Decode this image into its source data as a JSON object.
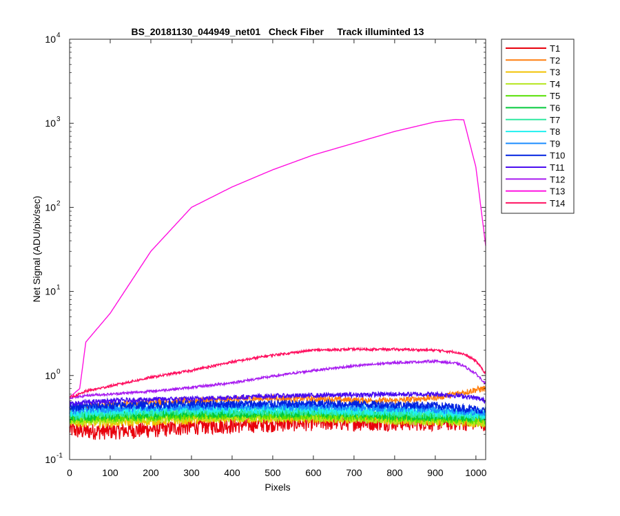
{
  "chart_data": {
    "type": "line",
    "title": "BS_20181130_044949_net01   Check Fiber     Track illuminted 13",
    "xlabel": "Pixels",
    "ylabel": "Net Signal (ADU/pix/sec)",
    "xlim": [
      0,
      1024
    ],
    "ylim": [
      0.1,
      10000
    ],
    "yscale": "log",
    "grid": false,
    "legend_position": "outside-top-right",
    "x_ticks": [
      0,
      100,
      200,
      300,
      400,
      500,
      600,
      700,
      800,
      900,
      1000
    ],
    "x_tick_labels": [
      "0",
      "100",
      "200",
      "300",
      "400",
      "500",
      "600",
      "700",
      "800",
      "900",
      "1000"
    ],
    "y_ticks": [
      0.1,
      1,
      10,
      100,
      1000,
      10000
    ],
    "y_tick_labels": [
      {
        "base": "10",
        "exp": "-1"
      },
      {
        "base": "10",
        "exp": "0"
      },
      {
        "base": "10",
        "exp": "1"
      },
      {
        "base": "10",
        "exp": "2"
      },
      {
        "base": "10",
        "exp": "3"
      },
      {
        "base": "10",
        "exp": "4"
      }
    ],
    "x": [
      0,
      25,
      40,
      100,
      200,
      300,
      400,
      500,
      600,
      700,
      800,
      900,
      950,
      970,
      1000,
      1024
    ],
    "series": [
      {
        "name": "T1",
        "color": "#e8000b",
        "values": [
          0.23,
          0.22,
          0.22,
          0.22,
          0.23,
          0.25,
          0.26,
          0.27,
          0.28,
          0.28,
          0.28,
          0.28,
          0.28,
          0.28,
          0.28,
          0.28
        ],
        "noise": 0.1
      },
      {
        "name": "T2",
        "color": "#ff7f0e",
        "values": [
          0.4,
          0.42,
          0.43,
          0.45,
          0.48,
          0.5,
          0.52,
          0.54,
          0.53,
          0.51,
          0.5,
          0.55,
          0.6,
          0.63,
          0.68,
          0.7
        ],
        "noise": 0.04
      },
      {
        "name": "T3",
        "color": "#f2c200",
        "values": [
          0.28,
          0.28,
          0.28,
          0.28,
          0.29,
          0.3,
          0.31,
          0.31,
          0.31,
          0.31,
          0.3,
          0.29,
          0.29,
          0.28,
          0.28,
          0.28
        ],
        "noise": 0.06
      },
      {
        "name": "T4",
        "color": "#b5e61d",
        "values": [
          0.29,
          0.29,
          0.29,
          0.3,
          0.31,
          0.32,
          0.32,
          0.32,
          0.32,
          0.31,
          0.3,
          0.29,
          0.29,
          0.29,
          0.28,
          0.28
        ],
        "noise": 0.06
      },
      {
        "name": "T5",
        "color": "#55e000",
        "values": [
          0.31,
          0.31,
          0.31,
          0.32,
          0.33,
          0.34,
          0.34,
          0.34,
          0.34,
          0.33,
          0.32,
          0.31,
          0.31,
          0.31,
          0.3,
          0.3
        ],
        "noise": 0.06
      },
      {
        "name": "T6",
        "color": "#00c83a",
        "values": [
          0.33,
          0.33,
          0.33,
          0.34,
          0.35,
          0.36,
          0.36,
          0.36,
          0.36,
          0.35,
          0.34,
          0.33,
          0.33,
          0.32,
          0.32,
          0.32
        ],
        "noise": 0.06
      },
      {
        "name": "T7",
        "color": "#2ee8a0",
        "values": [
          0.34,
          0.34,
          0.35,
          0.36,
          0.37,
          0.38,
          0.38,
          0.38,
          0.38,
          0.37,
          0.36,
          0.35,
          0.34,
          0.34,
          0.33,
          0.33
        ],
        "noise": 0.06
      },
      {
        "name": "T8",
        "color": "#20f0f0",
        "values": [
          0.36,
          0.36,
          0.37,
          0.38,
          0.39,
          0.4,
          0.4,
          0.4,
          0.4,
          0.39,
          0.38,
          0.37,
          0.36,
          0.35,
          0.35,
          0.35
        ],
        "noise": 0.06
      },
      {
        "name": "T9",
        "color": "#1a8cff",
        "values": [
          0.39,
          0.39,
          0.4,
          0.41,
          0.42,
          0.43,
          0.43,
          0.43,
          0.43,
          0.42,
          0.41,
          0.4,
          0.39,
          0.38,
          0.37,
          0.37
        ],
        "noise": 0.05
      },
      {
        "name": "T10",
        "color": "#0022e0",
        "values": [
          0.42,
          0.42,
          0.43,
          0.44,
          0.45,
          0.46,
          0.46,
          0.46,
          0.46,
          0.46,
          0.45,
          0.44,
          0.42,
          0.41,
          0.4,
          0.38
        ],
        "noise": 0.05
      },
      {
        "name": "T11",
        "color": "#4a0cf0",
        "values": [
          0.46,
          0.47,
          0.48,
          0.5,
          0.52,
          0.53,
          0.55,
          0.57,
          0.58,
          0.59,
          0.6,
          0.6,
          0.58,
          0.57,
          0.54,
          0.5
        ],
        "noise": 0.03
      },
      {
        "name": "T12",
        "color": "#a81cf0",
        "values": [
          0.55,
          0.56,
          0.58,
          0.6,
          0.65,
          0.72,
          0.82,
          0.98,
          1.15,
          1.3,
          1.42,
          1.48,
          1.4,
          1.3,
          1.05,
          0.8
        ],
        "noise": 0.015
      },
      {
        "name": "T13",
        "color": "#ff10e0",
        "values": [
          0.55,
          0.7,
          2.5,
          5.5,
          30,
          100,
          175,
          280,
          420,
          580,
          800,
          1040,
          1110,
          1100,
          300,
          35
        ],
        "noise": 0.0
      },
      {
        "name": "T14",
        "color": "#ff1060",
        "values": [
          0.55,
          0.6,
          0.65,
          0.75,
          0.95,
          1.15,
          1.45,
          1.75,
          2.0,
          2.05,
          2.05,
          2.0,
          1.9,
          1.8,
          1.5,
          1.05
        ],
        "noise": 0.015
      }
    ]
  }
}
